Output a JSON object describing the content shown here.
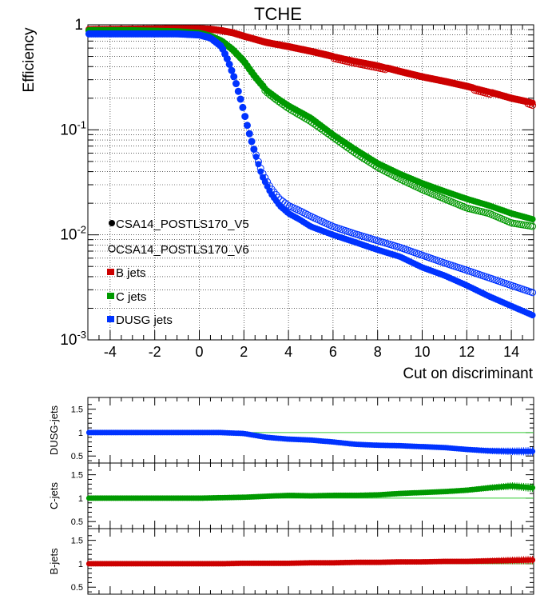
{
  "chart_data": [
    {
      "type": "scatter",
      "title": "TCHE",
      "xlabel": "Cut on discriminant",
      "ylabel": "Efficiency",
      "xlim": [
        -5,
        15
      ],
      "ylim": [
        0.001,
        1
      ],
      "y_scale": "log",
      "grid": true,
      "x_ticks": [
        -4,
        -2,
        0,
        2,
        4,
        6,
        8,
        10,
        12,
        14
      ],
      "x_tick_labels": [
        "-4",
        "-2",
        "0",
        "2",
        "4",
        "6",
        "8",
        "10",
        "12",
        "14"
      ],
      "y_ticks": [
        {
          "value": 1,
          "base": "1",
          "exp": ""
        },
        {
          "value": 0.1,
          "base": "10",
          "exp": "-1"
        },
        {
          "value": 0.01,
          "base": "10",
          "exp": "-2"
        },
        {
          "value": 0.001,
          "base": "10",
          "exp": "-3"
        }
      ],
      "legend": [
        {
          "label": "CSA14_POSTLS170_V5",
          "marker": "filled-circle",
          "color": "#000000"
        },
        {
          "label": "CSA14_POSTLS170_V6",
          "marker": "open-circle",
          "color": "#000000"
        },
        {
          "label": "B jets",
          "marker": "square",
          "color": "#cc0000"
        },
        {
          "label": "C jets",
          "marker": "square",
          "color": "#009900"
        },
        {
          "label": "DUSG jets",
          "marker": "square",
          "color": "#0033ff"
        }
      ],
      "legend_position": "bottom-left",
      "series": [
        {
          "name": "B jets",
          "color": "#cc0000",
          "x": [
            -5,
            -3,
            -1,
            0,
            0.5,
            1,
            1.5,
            2,
            3,
            4,
            5,
            6,
            7,
            8,
            9,
            10,
            11,
            12,
            13,
            14,
            15
          ],
          "v5": [
            0.9,
            0.91,
            0.92,
            0.92,
            0.91,
            0.88,
            0.84,
            0.78,
            0.68,
            0.62,
            0.56,
            0.5,
            0.45,
            0.41,
            0.36,
            0.32,
            0.29,
            0.26,
            0.23,
            0.2,
            0.18
          ],
          "v6": [
            0.9,
            0.91,
            0.92,
            0.92,
            0.9,
            0.87,
            0.83,
            0.77,
            0.67,
            0.6,
            0.54,
            0.48,
            0.43,
            0.39,
            0.35,
            0.31,
            0.28,
            0.25,
            0.22,
            0.2,
            0.17
          ]
        },
        {
          "name": "C jets",
          "color": "#009900",
          "x": [
            -5,
            -3,
            -1,
            0,
            0.5,
            1,
            1.5,
            2,
            2.5,
            3,
            3.5,
            4,
            5,
            6,
            7,
            8,
            9,
            10,
            11,
            12,
            13,
            14,
            15
          ],
          "v5": [
            0.88,
            0.88,
            0.86,
            0.83,
            0.78,
            0.7,
            0.58,
            0.45,
            0.32,
            0.24,
            0.2,
            0.17,
            0.13,
            0.09,
            0.065,
            0.048,
            0.038,
            0.031,
            0.026,
            0.022,
            0.019,
            0.016,
            0.014
          ],
          "v6": [
            0.88,
            0.88,
            0.86,
            0.83,
            0.77,
            0.69,
            0.57,
            0.44,
            0.31,
            0.23,
            0.19,
            0.16,
            0.12,
            0.085,
            0.06,
            0.044,
            0.034,
            0.027,
            0.022,
            0.018,
            0.016,
            0.013,
            0.012
          ]
        },
        {
          "name": "DUSG jets",
          "color": "#0033ff",
          "x": [
            -5,
            -3,
            -1,
            0,
            0.5,
            1,
            1.3,
            1.6,
            1.9,
            2.2,
            2.5,
            2.8,
            3.2,
            3.6,
            4,
            4.5,
            5,
            6,
            7,
            8,
            9,
            10,
            11,
            12,
            13,
            14,
            15
          ],
          "v5": [
            0.82,
            0.82,
            0.82,
            0.8,
            0.75,
            0.62,
            0.45,
            0.3,
            0.18,
            0.1,
            0.06,
            0.037,
            0.025,
            0.019,
            0.016,
            0.014,
            0.012,
            0.01,
            0.0085,
            0.0072,
            0.0062,
            0.0049,
            0.0041,
            0.0033,
            0.0026,
            0.0021,
            0.0017
          ],
          "v6": [
            0.82,
            0.82,
            0.82,
            0.8,
            0.75,
            0.62,
            0.45,
            0.3,
            0.18,
            0.1,
            0.062,
            0.04,
            0.028,
            0.022,
            0.019,
            0.017,
            0.015,
            0.012,
            0.0102,
            0.0088,
            0.0076,
            0.0064,
            0.0054,
            0.0046,
            0.0039,
            0.0033,
            0.0028
          ]
        }
      ]
    },
    {
      "type": "scatter",
      "ylabel": "DUSG-jets",
      "color": "#0033ff",
      "ylim": [
        0.35,
        1.75
      ],
      "y_ticks": [
        0.5,
        1,
        1.5
      ],
      "y_tick_labels": [
        "0.5",
        "1",
        "1.5"
      ],
      "x": [
        -5,
        -3,
        -1,
        0,
        1,
        2,
        3,
        4,
        5,
        6,
        7,
        8,
        9,
        10,
        11,
        12,
        13,
        14,
        15
      ],
      "values": [
        1.0,
        1.0,
        1.0,
        1.0,
        1.0,
        0.98,
        0.9,
        0.86,
        0.84,
        0.8,
        0.75,
        0.73,
        0.72,
        0.7,
        0.68,
        0.64,
        0.61,
        0.6,
        0.6
      ]
    },
    {
      "type": "scatter",
      "ylabel": "C-jets",
      "color": "#009900",
      "ylim": [
        0.35,
        1.75
      ],
      "y_ticks": [
        0.5,
        1,
        1.5
      ],
      "y_tick_labels": [
        "0.5",
        "1",
        "1.5"
      ],
      "x": [
        -5,
        -3,
        -1,
        0,
        1,
        2,
        3,
        4,
        5,
        6,
        7,
        8,
        9,
        10,
        11,
        12,
        13,
        14,
        15
      ],
      "values": [
        1.0,
        1.0,
        1.0,
        1.0,
        1.01,
        1.02,
        1.04,
        1.06,
        1.05,
        1.06,
        1.06,
        1.07,
        1.1,
        1.12,
        1.14,
        1.17,
        1.22,
        1.26,
        1.22
      ]
    },
    {
      "type": "scatter",
      "ylabel": "B-jets",
      "color": "#cc0000",
      "ylim": [
        0.35,
        1.75
      ],
      "y_ticks": [
        0.5,
        1,
        1.5
      ],
      "y_tick_labels": [
        "0.5",
        "1",
        "1.5"
      ],
      "x": [
        -5,
        -3,
        -1,
        0,
        1,
        2,
        3,
        4,
        5,
        6,
        7,
        8,
        9,
        10,
        11,
        12,
        13,
        14,
        15
      ],
      "values": [
        1.0,
        1.0,
        1.0,
        1.0,
        1.0,
        1.01,
        1.01,
        1.01,
        1.02,
        1.02,
        1.03,
        1.03,
        1.04,
        1.04,
        1.05,
        1.05,
        1.06,
        1.07,
        1.08
      ]
    }
  ]
}
